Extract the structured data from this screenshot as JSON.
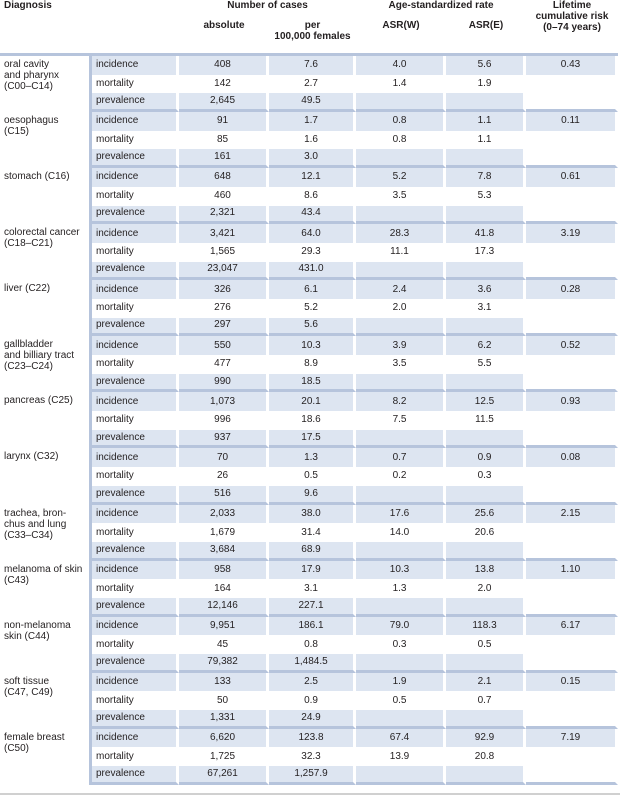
{
  "header": {
    "diagnosis": "Diagnosis",
    "number_of_cases": "Number of cases",
    "age_standardized_rate": "Age-standardized rate",
    "lifetime_risk_line1": "Lifetime",
    "lifetime_risk_line2": "cumulative risk",
    "lifetime_risk_line3": "(0–74 years)",
    "absolute": "absolute",
    "per_line1": "per",
    "per_line2": "100,000 females",
    "asr_w": "ASR(W)",
    "asr_e": "ASR(E)"
  },
  "groups": [
    {
      "name": [
        "oral cavity",
        "and pharynx",
        "(C00–C14)"
      ],
      "risk": "0.43",
      "rows": [
        {
          "measure": "incidence",
          "absolute": "408",
          "per100k": "7.6",
          "asr_w": "4.0",
          "asr_e": "5.6"
        },
        {
          "measure": "mortality",
          "absolute": "142",
          "per100k": "2.7",
          "asr_w": "1.4",
          "asr_e": "1.9"
        },
        {
          "measure": "prevalence",
          "absolute": "2,645",
          "per100k": "49.5",
          "asr_w": "",
          "asr_e": ""
        }
      ]
    },
    {
      "name": [
        "oesophagus",
        "(C15)"
      ],
      "risk": "0.11",
      "rows": [
        {
          "measure": "incidence",
          "absolute": "91",
          "per100k": "1.7",
          "asr_w": "0.8",
          "asr_e": "1.1"
        },
        {
          "measure": "mortality",
          "absolute": "85",
          "per100k": "1.6",
          "asr_w": "0.8",
          "asr_e": "1.1"
        },
        {
          "measure": "prevalence",
          "absolute": "161",
          "per100k": "3.0",
          "asr_w": "",
          "asr_e": ""
        }
      ]
    },
    {
      "name": [
        "stomach (C16)"
      ],
      "risk": "0.61",
      "rows": [
        {
          "measure": "incidence",
          "absolute": "648",
          "per100k": "12.1",
          "asr_w": "5.2",
          "asr_e": "7.8"
        },
        {
          "measure": "mortality",
          "absolute": "460",
          "per100k": "8.6",
          "asr_w": "3.5",
          "asr_e": "5.3"
        },
        {
          "measure": "prevalence",
          "absolute": "2,321",
          "per100k": "43.4",
          "asr_w": "",
          "asr_e": ""
        }
      ]
    },
    {
      "name": [
        "colorectal cancer",
        "(C18–C21)"
      ],
      "risk": "3.19",
      "rows": [
        {
          "measure": "incidence",
          "absolute": "3,421",
          "per100k": "64.0",
          "asr_w": "28.3",
          "asr_e": "41.8"
        },
        {
          "measure": "mortality",
          "absolute": "1,565",
          "per100k": "29.3",
          "asr_w": "11.1",
          "asr_e": "17.3"
        },
        {
          "measure": "prevalence",
          "absolute": "23,047",
          "per100k": "431.0",
          "asr_w": "",
          "asr_e": ""
        }
      ]
    },
    {
      "name": [
        "liver (C22)"
      ],
      "risk": "0.28",
      "rows": [
        {
          "measure": "incidence",
          "absolute": "326",
          "per100k": "6.1",
          "asr_w": "2.4",
          "asr_e": "3.6"
        },
        {
          "measure": "mortality",
          "absolute": "276",
          "per100k": "5.2",
          "asr_w": "2.0",
          "asr_e": "3.1"
        },
        {
          "measure": "prevalence",
          "absolute": "297",
          "per100k": "5.6",
          "asr_w": "",
          "asr_e": ""
        }
      ]
    },
    {
      "name": [
        "gallbladder",
        "and billiary tract",
        "(C23–C24)"
      ],
      "risk": "0.52",
      "rows": [
        {
          "measure": "incidence",
          "absolute": "550",
          "per100k": "10.3",
          "asr_w": "3.9",
          "asr_e": "6.2"
        },
        {
          "measure": "mortality",
          "absolute": "477",
          "per100k": "8.9",
          "asr_w": "3.5",
          "asr_e": "5.5"
        },
        {
          "measure": "prevalence",
          "absolute": "990",
          "per100k": "18.5",
          "asr_w": "",
          "asr_e": ""
        }
      ]
    },
    {
      "name": [
        "pancreas (C25)"
      ],
      "risk": "0.93",
      "rows": [
        {
          "measure": "incidence",
          "absolute": "1,073",
          "per100k": "20.1",
          "asr_w": "8.2",
          "asr_e": "12.5"
        },
        {
          "measure": "mortality",
          "absolute": "996",
          "per100k": "18.6",
          "asr_w": "7.5",
          "asr_e": "11.5"
        },
        {
          "measure": "prevalence",
          "absolute": "937",
          "per100k": "17.5",
          "asr_w": "",
          "asr_e": ""
        }
      ]
    },
    {
      "name": [
        "larynx (C32)"
      ],
      "risk": "0.08",
      "rows": [
        {
          "measure": "incidence",
          "absolute": "70",
          "per100k": "1.3",
          "asr_w": "0.7",
          "asr_e": "0.9"
        },
        {
          "measure": "mortality",
          "absolute": "26",
          "per100k": "0.5",
          "asr_w": "0.2",
          "asr_e": "0.3"
        },
        {
          "measure": "prevalence",
          "absolute": "516",
          "per100k": "9.6",
          "asr_w": "",
          "asr_e": ""
        }
      ]
    },
    {
      "name": [
        "trachea, bron-",
        "chus and lung",
        "(C33–C34)"
      ],
      "risk": "2.15",
      "rows": [
        {
          "measure": "incidence",
          "absolute": "2,033",
          "per100k": "38.0",
          "asr_w": "17.6",
          "asr_e": "25.6"
        },
        {
          "measure": "mortality",
          "absolute": "1,679",
          "per100k": "31.4",
          "asr_w": "14.0",
          "asr_e": "20.6"
        },
        {
          "measure": "prevalence",
          "absolute": "3,684",
          "per100k": "68.9",
          "asr_w": "",
          "asr_e": ""
        }
      ]
    },
    {
      "name": [
        "melanoma of skin",
        "(C43)"
      ],
      "risk": "1.10",
      "rows": [
        {
          "measure": "incidence",
          "absolute": "958",
          "per100k": "17.9",
          "asr_w": "10.3",
          "asr_e": "13.8"
        },
        {
          "measure": "mortality",
          "absolute": "164",
          "per100k": "3.1",
          "asr_w": "1.3",
          "asr_e": "2.0"
        },
        {
          "measure": "prevalence",
          "absolute": "12,146",
          "per100k": "227.1",
          "asr_w": "",
          "asr_e": ""
        }
      ]
    },
    {
      "name": [
        "non-melanoma",
        "skin (C44)"
      ],
      "risk": "6.17",
      "rows": [
        {
          "measure": "incidence",
          "absolute": "9,951",
          "per100k": "186.1",
          "asr_w": "79.0",
          "asr_e": "118.3"
        },
        {
          "measure": "mortality",
          "absolute": "45",
          "per100k": "0.8",
          "asr_w": "0.3",
          "asr_e": "0.5"
        },
        {
          "measure": "prevalence",
          "absolute": "79,382",
          "per100k": "1,484.5",
          "asr_w": "",
          "asr_e": ""
        }
      ]
    },
    {
      "name": [
        "soft tissue",
        "(C47, C49)"
      ],
      "risk": "0.15",
      "rows": [
        {
          "measure": "incidence",
          "absolute": "133",
          "per100k": "2.5",
          "asr_w": "1.9",
          "asr_e": "2.1"
        },
        {
          "measure": "mortality",
          "absolute": "50",
          "per100k": "0.9",
          "asr_w": "0.5",
          "asr_e": "0.7"
        },
        {
          "measure": "prevalence",
          "absolute": "1,331",
          "per100k": "24.9",
          "asr_w": "",
          "asr_e": ""
        }
      ]
    },
    {
      "name": [
        "female breast",
        "(C50)"
      ],
      "risk": "7.19",
      "rows": [
        {
          "measure": "incidence",
          "absolute": "6,620",
          "per100k": "123.8",
          "asr_w": "67.4",
          "asr_e": "92.9"
        },
        {
          "measure": "mortality",
          "absolute": "1,725",
          "per100k": "32.3",
          "asr_w": "13.9",
          "asr_e": "20.8"
        },
        {
          "measure": "prevalence",
          "absolute": "67,261",
          "per100k": "1,257.9",
          "asr_w": "",
          "asr_e": ""
        }
      ]
    }
  ],
  "colors": {
    "row_tint": "#dde5f1",
    "rule": "#b6c4dc",
    "text": "#231f20"
  }
}
